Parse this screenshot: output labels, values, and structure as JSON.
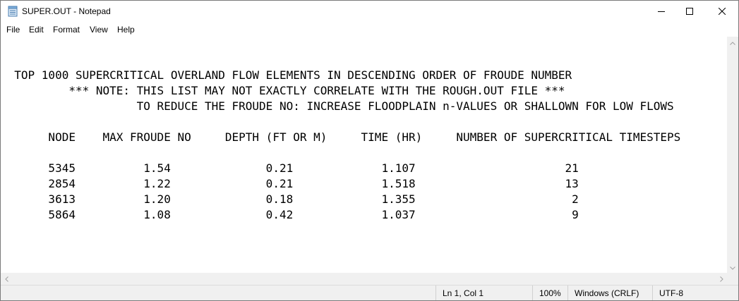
{
  "window": {
    "title": "SUPER.OUT - Notepad"
  },
  "menu": {
    "items": [
      "File",
      "Edit",
      "Format",
      "View",
      "Help"
    ]
  },
  "editor": {
    "lines": [
      "  TOP 1000 SUPERCRITICAL OVERLAND FLOW ELEMENTS IN DESCENDING ORDER OF FROUDE NUMBER",
      "          *** NOTE: THIS LIST MAY NOT EXACTLY CORRELATE WITH THE ROUGH.OUT FILE ***",
      "                    TO REDUCE THE FROUDE NO: INCREASE FLOODPLAIN n-VALUES OR SHALLOWN FOR LOW FLOWS",
      "",
      "       NODE    MAX FROUDE NO     DEPTH (FT OR M)     TIME (HR)     NUMBER OF SUPERCRITICAL TIMESTEPS",
      "",
      "       5345          1.54              0.21             1.107                      21",
      "       2854          1.22              0.21             1.518                      13",
      "       3613          1.20              0.18             1.355                       2",
      "       5864          1.08              0.42             1.037                       9"
    ]
  },
  "status": {
    "position": "Ln 1, Col 1",
    "zoom": "100%",
    "line_ending": "Windows (CRLF)",
    "encoding": "UTF-8"
  },
  "icons": {
    "app": "notepad-icon",
    "minimize": "minimize-icon",
    "maximize": "maximize-icon",
    "close": "close-icon"
  }
}
